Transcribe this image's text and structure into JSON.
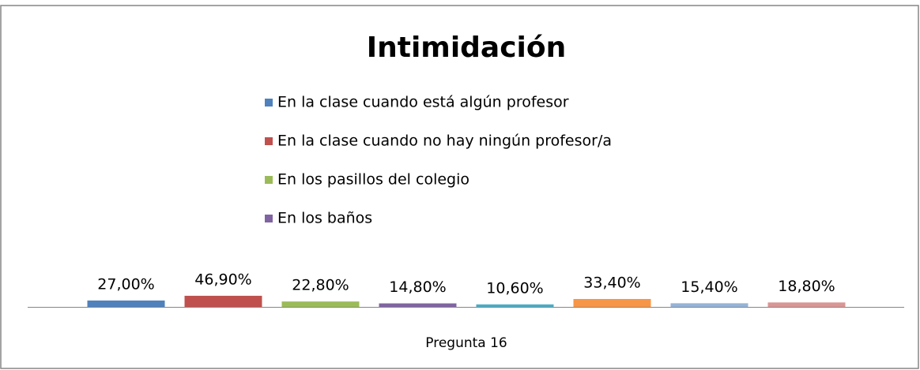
{
  "chart_data": {
    "type": "bar",
    "title": "Intimidación",
    "categories": [
      "Pregunta 16"
    ],
    "series": [
      {
        "name": "En la clase cuando está algún profesor",
        "color": "#4f81bd",
        "values": [
          27.0
        ],
        "value_labels": [
          "27,00%"
        ]
      },
      {
        "name": "En la clase cuando no hay ningún profesor/a",
        "color": "#c0504d",
        "values": [
          46.9
        ],
        "value_labels": [
          "46,90%"
        ]
      },
      {
        "name": "En los pasillos del colegio",
        "color": "#9bbb59",
        "values": [
          22.8
        ],
        "value_labels": [
          "22,80%"
        ]
      },
      {
        "name": "En los baños",
        "color": "#8064a2",
        "values": [
          14.8
        ],
        "value_labels": [
          "14,80%"
        ]
      },
      {
        "color": "#4bacc6",
        "values": [
          10.6
        ],
        "value_labels": [
          "10,60%"
        ]
      },
      {
        "color": "#f79646",
        "values": [
          33.4
        ],
        "value_labels": [
          "33,40%"
        ]
      },
      {
        "color": "#95b3d7",
        "values": [
          15.4
        ],
        "value_labels": [
          "15,40%"
        ]
      },
      {
        "color": "#d99694",
        "values": [
          18.8
        ],
        "value_labels": [
          "18,80%"
        ]
      }
    ],
    "ylim": [
      0,
      100
    ]
  }
}
